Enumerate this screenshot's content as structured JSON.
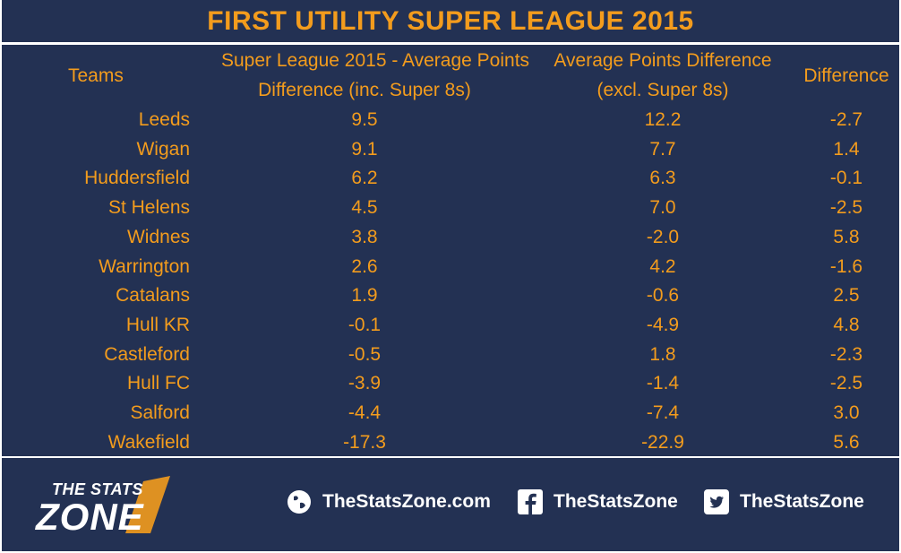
{
  "title": "FIRST UTILITY SUPER LEAGUE 2015",
  "colors": {
    "background": "#233153",
    "accent": "#f39c1d",
    "text_light": "#ffffff"
  },
  "chart_data": {
    "type": "table",
    "headers": {
      "teams": "Teams",
      "col_a_line1": "Super League 2015 - Average Points",
      "col_a_line2": "Difference (inc. Super 8s)",
      "col_b_line1": "Average Points Difference",
      "col_b_line2": "(excl. Super 8s)",
      "difference": "Difference"
    },
    "rows": [
      {
        "team": "Leeds",
        "a": "9.5",
        "b": "12.2",
        "d": "-2.7"
      },
      {
        "team": "Wigan",
        "a": "9.1",
        "b": "7.7",
        "d": "1.4"
      },
      {
        "team": "Huddersfield",
        "a": "6.2",
        "b": "6.3",
        "d": "-0.1"
      },
      {
        "team": "St Helens",
        "a": "4.5",
        "b": "7.0",
        "d": "-2.5"
      },
      {
        "team": "Widnes",
        "a": "3.8",
        "b": "-2.0",
        "d": "5.8"
      },
      {
        "team": "Warrington",
        "a": "2.6",
        "b": "4.2",
        "d": "-1.6"
      },
      {
        "team": "Catalans",
        "a": "1.9",
        "b": "-0.6",
        "d": "2.5"
      },
      {
        "team": "Hull KR",
        "a": "-0.1",
        "b": "-4.9",
        "d": "4.8"
      },
      {
        "team": "Castleford",
        "a": "-0.5",
        "b": "1.8",
        "d": "-2.3"
      },
      {
        "team": "Hull FC",
        "a": "-3.9",
        "b": "-1.4",
        "d": "-2.5"
      },
      {
        "team": "Salford",
        "a": "-4.4",
        "b": "-7.4",
        "d": "3.0"
      },
      {
        "team": "Wakefield",
        "a": "-17.3",
        "b": "-22.9",
        "d": "5.6"
      }
    ]
  },
  "footer": {
    "logo_line1": "THE STATS",
    "logo_line2": "ZONE",
    "website": "TheStatsZone.com",
    "facebook": "TheStatsZone",
    "twitter": "TheStatsZone",
    "icons": [
      "globe-icon",
      "facebook-icon",
      "twitter-icon"
    ]
  }
}
